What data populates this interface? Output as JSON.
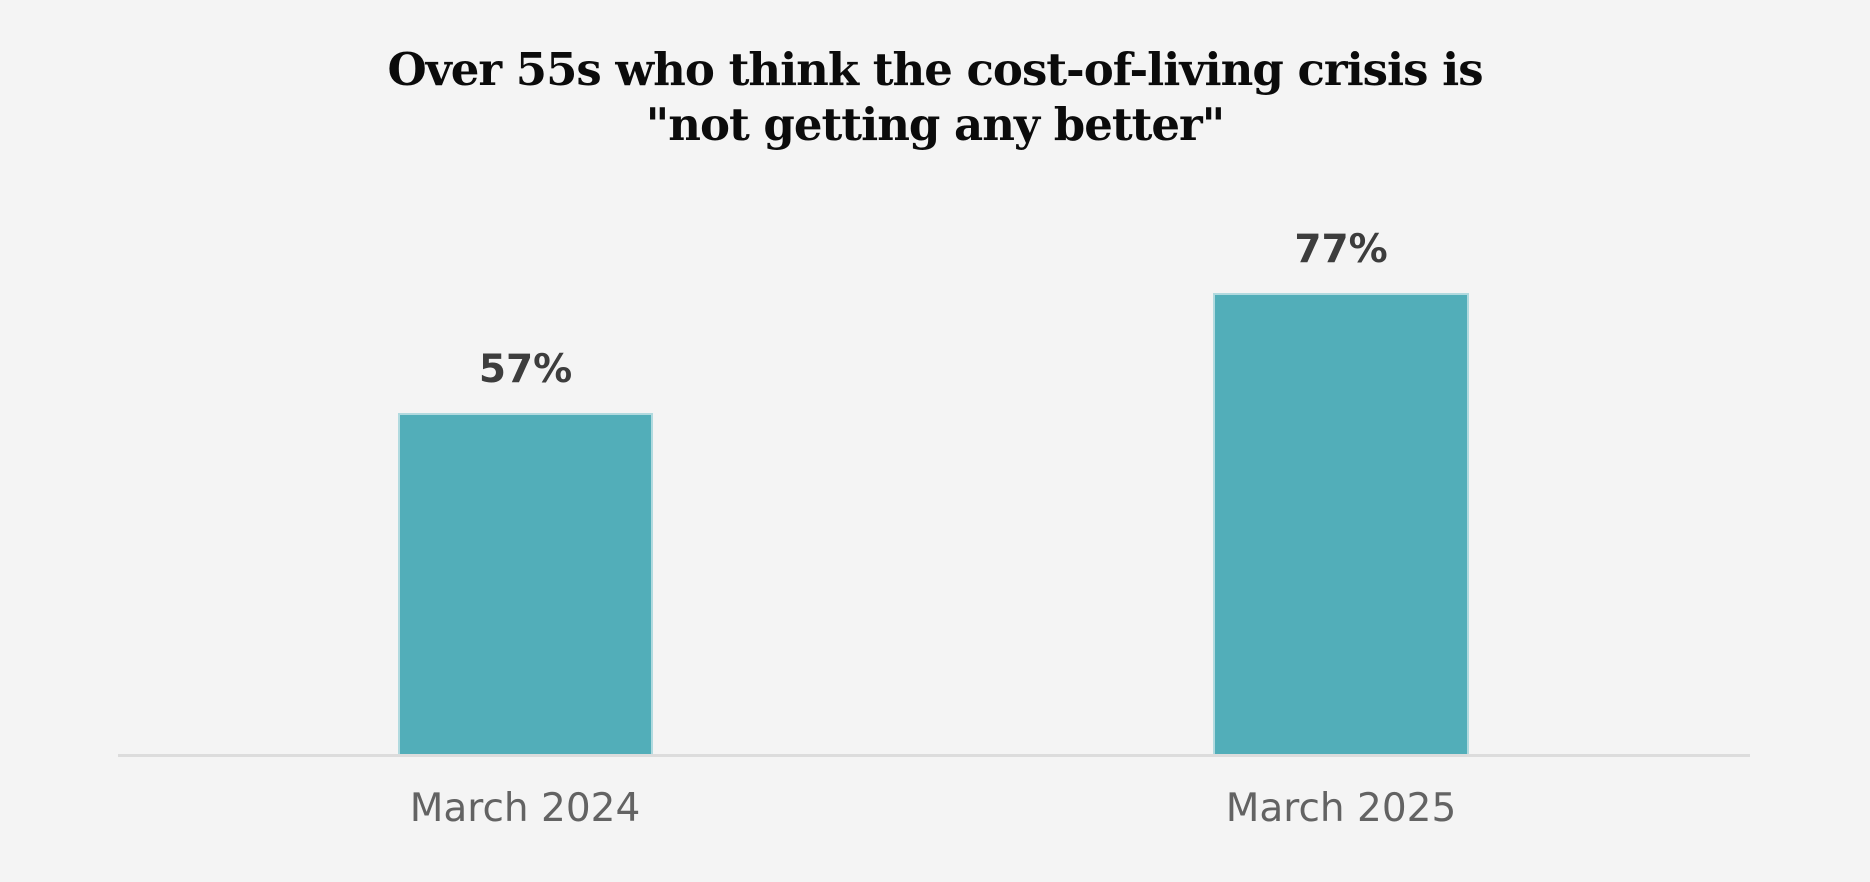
{
  "chart_data": {
    "type": "bar",
    "title": "Over 55s who think the cost-of-living crisis is \"not getting any better\"",
    "title_lines": [
      "Over 55s who think the cost-of-living crisis is",
      "\"not getting any better\""
    ],
    "categories": [
      "March 2024",
      "March 2025"
    ],
    "values": [
      57,
      77
    ],
    "value_labels": [
      "57%",
      "77%"
    ],
    "unit": "%",
    "xlabel": "",
    "ylabel": "",
    "ylim": [
      0,
      100
    ],
    "grid": false,
    "legend": "none",
    "colors": {
      "background": "#f4f4f4",
      "bar": "#52aeb9",
      "bar_edge": "rgba(255,255,255,0.55)",
      "title": "#0b0b0b",
      "value_label": "#3d3d3d",
      "category_label": "#636363",
      "axis_line": "#dcdcdc"
    }
  }
}
